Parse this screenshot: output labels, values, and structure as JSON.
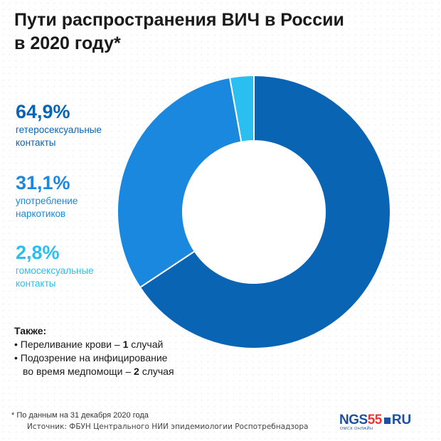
{
  "title": {
    "line1": "Пути распространения ВИЧ в России",
    "line2": "в 2020 году*"
  },
  "legend": [
    {
      "pct": "64,9%",
      "label1": "гетеросексуальные",
      "label2": "контакты",
      "color": "#0a64b4"
    },
    {
      "pct": "31,1%",
      "label1": "употребление",
      "label2": "наркотиков",
      "color": "#1a88de"
    },
    {
      "pct": "2,8%",
      "label1": "гомосексуальные",
      "label2": "контакты",
      "color": "#2bbef0"
    }
  ],
  "also": {
    "head": "Также:",
    "line1_pre": "• Переливание крови – ",
    "line1_num": "1",
    "line1_post": " случай",
    "line2": "• Подозрение на инфицирование",
    "line3_pre": "во время медпомощи – ",
    "line3_num": "2",
    "line3_post": " случая"
  },
  "footnote": "* По данным на 31 декабря 2020 года",
  "source": "Источник: ФБУН Центрального НИИ эпидемиологии Роспотребнадзора",
  "logo": {
    "ngs": "NGS",
    "num": "55",
    "ru": "RU",
    "sub": "ОМСК ОНЛАЙН"
  },
  "chart_data": {
    "type": "pie",
    "donut": true,
    "categories": [
      "гетеросексуальные контакты",
      "употребление наркотиков",
      "гомосексуальные контакты"
    ],
    "values": [
      64.9,
      31.1,
      2.8
    ],
    "colors": [
      "#0a64b4",
      "#1a88de",
      "#2bbef0"
    ],
    "title": "Пути распространения ВИЧ в России в 2020 году*"
  }
}
